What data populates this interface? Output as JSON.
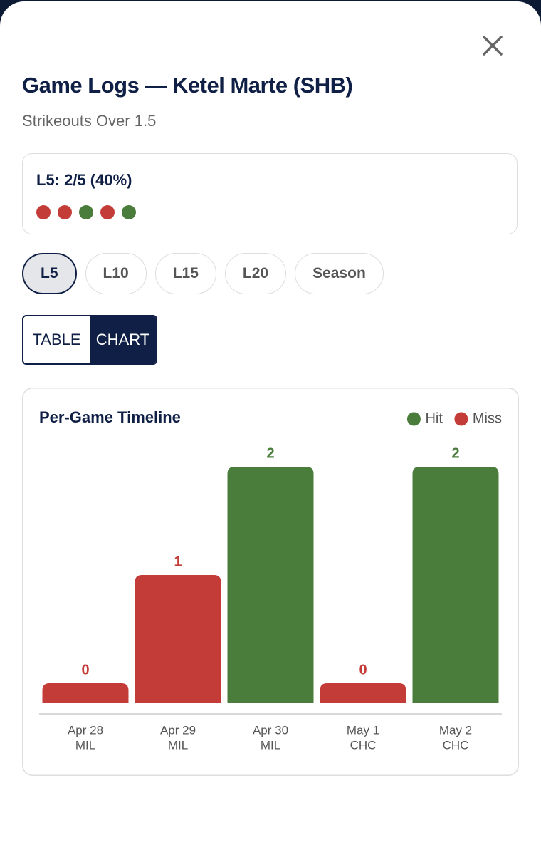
{
  "header": {
    "title": "Game Logs — Ketel Marte (SHB)",
    "subtitle": "Strikeouts Over 1.5"
  },
  "summary": {
    "label": "L5: 2/5 (40%)",
    "dots": [
      "#c43c37",
      "#c43c37",
      "#4a7c3c",
      "#c43c37",
      "#4a7c3c"
    ]
  },
  "filters": {
    "options": [
      "L5",
      "L10",
      "L15",
      "L20",
      "Season"
    ],
    "selected": 0
  },
  "view_toggle": {
    "options": [
      "TABLE",
      "CHART"
    ],
    "selected": 1
  },
  "chart_data": {
    "type": "bar",
    "title": "Per-Game Timeline",
    "legend": [
      {
        "name": "Hit",
        "color": "#4a7c3c"
      },
      {
        "name": "Miss",
        "color": "#c43c37"
      }
    ],
    "categories": [
      "Apr 28",
      "Apr 29",
      "Apr 30",
      "May 1",
      "May 2"
    ],
    "opponents": [
      "MIL",
      "MIL",
      "MIL",
      "CHC",
      "CHC"
    ],
    "values": [
      0,
      1,
      2,
      0,
      2
    ],
    "colors": [
      "#c43c37",
      "#c43c37",
      "#4a7c3c",
      "#c43c37",
      "#4a7c3c"
    ]
  }
}
